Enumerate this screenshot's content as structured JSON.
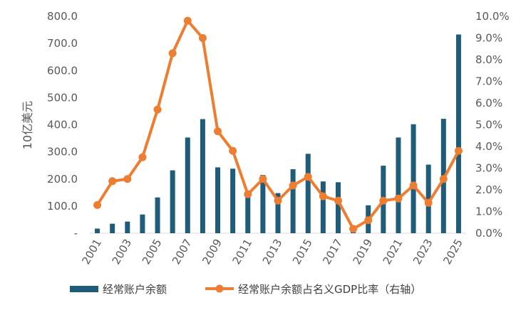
{
  "chart_data": {
    "type": "bar+line",
    "y_left_label": "10亿美元",
    "y_left_ticks": [
      "-",
      "100.0",
      "200.0",
      "300.0",
      "400.0",
      "500.0",
      "600.0",
      "700.0",
      "800.0"
    ],
    "y_left_lim": [
      0,
      800
    ],
    "y_right_ticks": [
      "0.0%",
      "1.0%",
      "2.0%",
      "3.0%",
      "4.0%",
      "5.0%",
      "6.0%",
      "7.0%",
      "8.0%",
      "9.0%",
      "10.0%"
    ],
    "y_right_lim": [
      0,
      10
    ],
    "x_tick_labels": [
      "2001",
      "2003",
      "2005",
      "2007",
      "2009",
      "2011",
      "2013",
      "2015",
      "2017",
      "2019",
      "2021",
      "2023",
      "2025"
    ],
    "years": [
      2001,
      2002,
      2003,
      2004,
      2005,
      2006,
      2007,
      2008,
      2009,
      2010,
      2011,
      2012,
      2013,
      2014,
      2015,
      2016,
      2017,
      2018,
      2019,
      2020,
      2021,
      2022,
      2023,
      2024,
      2025
    ],
    "series": [
      {
        "name": "经常账户余额",
        "kind": "bar",
        "axis": "left",
        "color": "#1F5C7A",
        "values": [
          17,
          35,
          43,
          69,
          132,
          232,
          353,
          421,
          243,
          238,
          136,
          215,
          148,
          236,
          293,
          191,
          188,
          24,
          103,
          249,
          353,
          402,
          253,
          422,
          733
        ]
      },
      {
        "name": "经常账户余额占名义GDP比率（右轴）",
        "kind": "line",
        "axis": "right",
        "color": "#ED7D31",
        "values": [
          1.3,
          2.4,
          2.5,
          3.5,
          5.7,
          8.3,
          9.8,
          9.0,
          4.7,
          3.8,
          1.8,
          2.5,
          1.5,
          2.2,
          2.6,
          1.7,
          1.5,
          0.2,
          0.6,
          1.5,
          1.6,
          2.2,
          1.4,
          2.5,
          3.8
        ]
      }
    ],
    "legend_position": "bottom",
    "grid": false
  }
}
